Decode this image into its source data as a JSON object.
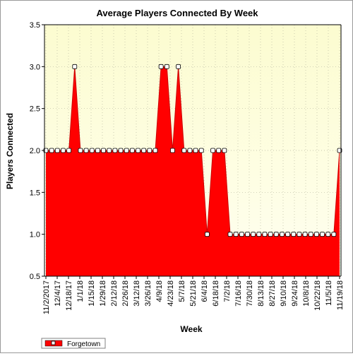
{
  "chart_data": {
    "type": "area",
    "title": "Average Players Connected By Week",
    "xlabel": "Week",
    "ylabel": "Players Connected",
    "ylim": [
      0.5,
      3.5
    ],
    "yticks": [
      "0.5",
      "1.0",
      "1.5",
      "2.0",
      "2.5",
      "3.0",
      "3.5"
    ],
    "x_tick_labels": [
      "11/2/2017",
      "12/4/17",
      "12/18/17",
      "1/1/18",
      "1/15/18",
      "1/29/18",
      "2/12/18",
      "2/26/18",
      "3/12/18",
      "3/26/18",
      "4/9/18",
      "4/23/18",
      "5/7/18",
      "5/21/18",
      "6/4/18",
      "6/18/18",
      "7/2/18",
      "7/16/18",
      "7/30/18",
      "8/13/18",
      "8/27/18",
      "9/10/18",
      "9/24/18",
      "10/8/18",
      "10/22/18",
      "11/5/18",
      "11/19/18"
    ],
    "grid": true,
    "legend_position": "bottom-left",
    "colors": {
      "fill": "#ff0000",
      "line": "#cc0000",
      "marker_fill": "#ffffff",
      "plot_bg_light": "#fffff0",
      "plot_bg_dark": "#fcfcd0"
    },
    "series": [
      {
        "name": "Forgetown",
        "values": [
          2,
          2,
          2,
          2,
          2,
          3,
          2,
          2,
          2,
          2,
          2,
          2,
          2,
          2,
          2,
          2,
          2,
          2,
          2,
          2,
          3,
          3,
          2,
          3,
          2,
          2,
          2,
          2,
          1,
          2,
          2,
          2,
          1,
          1,
          1,
          1,
          1,
          1,
          1,
          1,
          1,
          1,
          1,
          1,
          1,
          1,
          1,
          1,
          1,
          1,
          1,
          2
        ]
      }
    ]
  }
}
